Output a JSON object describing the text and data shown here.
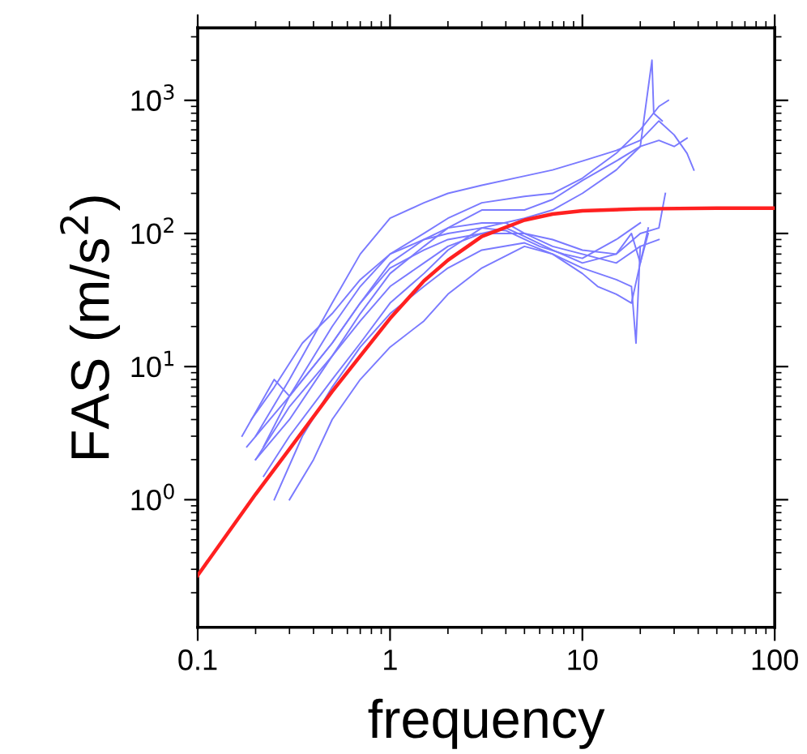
{
  "chart_data": {
    "type": "line",
    "xlabel": "frequency",
    "ylabel": "FAS (m/s$^{2}$)",
    "log": "xy",
    "grid": false,
    "legend": false,
    "marker": "none",
    "line_style": "solid",
    "xlim": [
      0.1,
      100
    ],
    "xticks": [
      0.1,
      1,
      10,
      100
    ],
    "ylim": [
      0.11,
      3500
    ],
    "yticks": [
      {
        "value": 1,
        "label": "10$^{0}$"
      },
      {
        "value": 10,
        "label": "10$^{1}$"
      },
      {
        "value": 100,
        "label": "10$^{2}$"
      },
      {
        "value": 1000,
        "label": "10$^{3}$"
      }
    ],
    "series": [
      {
        "color": "#7a7aff",
        "x": [
          0.2,
          0.3,
          0.5,
          0.7,
          1,
          1.5,
          2,
          3,
          5,
          7,
          10,
          15,
          20,
          25,
          30,
          35,
          38
        ],
        "values": [
          3,
          8,
          30,
          70,
          130,
          170,
          200,
          230,
          270,
          300,
          350,
          420,
          500,
          700,
          550,
          400,
          300
        ]
      },
      {
        "color": "#7a7aff",
        "x": [
          0.18,
          0.3,
          0.5,
          0.7,
          1,
          1.5,
          2,
          3,
          5,
          7,
          10,
          15,
          20,
          25,
          28
        ],
        "values": [
          2.5,
          6,
          20,
          40,
          70,
          100,
          130,
          170,
          190,
          200,
          260,
          400,
          600,
          900,
          1000
        ]
      },
      {
        "color": "#7a7aff",
        "x": [
          0.2,
          0.3,
          0.5,
          0.7,
          1,
          1.5,
          2,
          3,
          5,
          7,
          10,
          15,
          20,
          25,
          30,
          35
        ],
        "values": [
          2,
          4,
          12,
          25,
          50,
          80,
          110,
          150,
          150,
          180,
          250,
          350,
          450,
          500,
          450,
          520
        ]
      },
      {
        "color": "#7a7aff",
        "x": [
          0.22,
          0.3,
          0.5,
          0.7,
          1,
          1.5,
          2,
          3,
          5,
          7,
          10,
          15,
          20,
          23,
          23.5,
          26
        ],
        "values": [
          1.5,
          3,
          8,
          15,
          30,
          50,
          75,
          110,
          130,
          150,
          200,
          300,
          450,
          2000,
          800,
          700
        ]
      },
      {
        "color": "#7a7aff",
        "x": [
          0.17,
          0.25,
          0.3,
          0.5,
          0.7,
          1,
          1.5,
          2,
          3,
          4,
          5,
          7,
          10,
          15,
          20,
          25
        ],
        "values": [
          3,
          8,
          6,
          15,
          30,
          60,
          90,
          110,
          120,
          120,
          100,
          80,
          70,
          60,
          80,
          90
        ]
      },
      {
        "color": "#7a7aff",
        "x": [
          0.2,
          0.3,
          0.5,
          0.7,
          1,
          1.5,
          2,
          3,
          4,
          5,
          7,
          10,
          15,
          18,
          20,
          22
        ],
        "values": [
          2,
          5,
          12,
          22,
          40,
          60,
          80,
          100,
          110,
          95,
          75,
          60,
          70,
          100,
          60,
          110
        ]
      },
      {
        "color": "#7a7aff",
        "x": [
          0.25,
          0.35,
          0.5,
          0.7,
          1,
          1.5,
          2,
          3,
          5,
          7,
          10,
          15,
          18,
          19,
          20
        ],
        "values": [
          1,
          3,
          7,
          14,
          25,
          40,
          55,
          75,
          85,
          70,
          55,
          45,
          40,
          15,
          80
        ]
      },
      {
        "color": "#7a7aff",
        "x": [
          0.3,
          0.4,
          0.5,
          0.7,
          1,
          1.5,
          2,
          3,
          5,
          7,
          10,
          12,
          15,
          18,
          20,
          22
        ],
        "values": [
          1,
          2,
          4,
          8,
          14,
          22,
          35,
          55,
          80,
          70,
          50,
          40,
          35,
          30,
          60,
          100
        ]
      },
      {
        "color": "#7a7aff",
        "x": [
          0.22,
          0.3,
          0.5,
          0.7,
          1,
          1.5,
          2,
          3,
          5,
          7,
          10,
          15,
          20,
          25,
          27
        ],
        "values": [
          2.5,
          6,
          15,
          30,
          55,
          75,
          90,
          100,
          100,
          90,
          75,
          70,
          100,
          110,
          200
        ]
      },
      {
        "color": "#7a7aff",
        "x": [
          0.19,
          0.25,
          0.35,
          0.5,
          0.7,
          1,
          1.5,
          2,
          3,
          4,
          6,
          8,
          10,
          15,
          20
        ],
        "values": [
          4,
          7,
          15,
          25,
          45,
          70,
          90,
          100,
          110,
          105,
          80,
          70,
          65,
          90,
          120
        ]
      },
      {
        "color": "#ff2020",
        "x": [
          0.1,
          0.2,
          0.3,
          0.5,
          0.7,
          1,
          1.5,
          2,
          3,
          5,
          7,
          10,
          20,
          50,
          100
        ],
        "values": [
          0.27,
          1.1,
          2.4,
          6.5,
          12,
          23,
          44,
          63,
          95,
          126,
          140,
          148,
          153,
          155,
          155
        ]
      }
    ]
  }
}
